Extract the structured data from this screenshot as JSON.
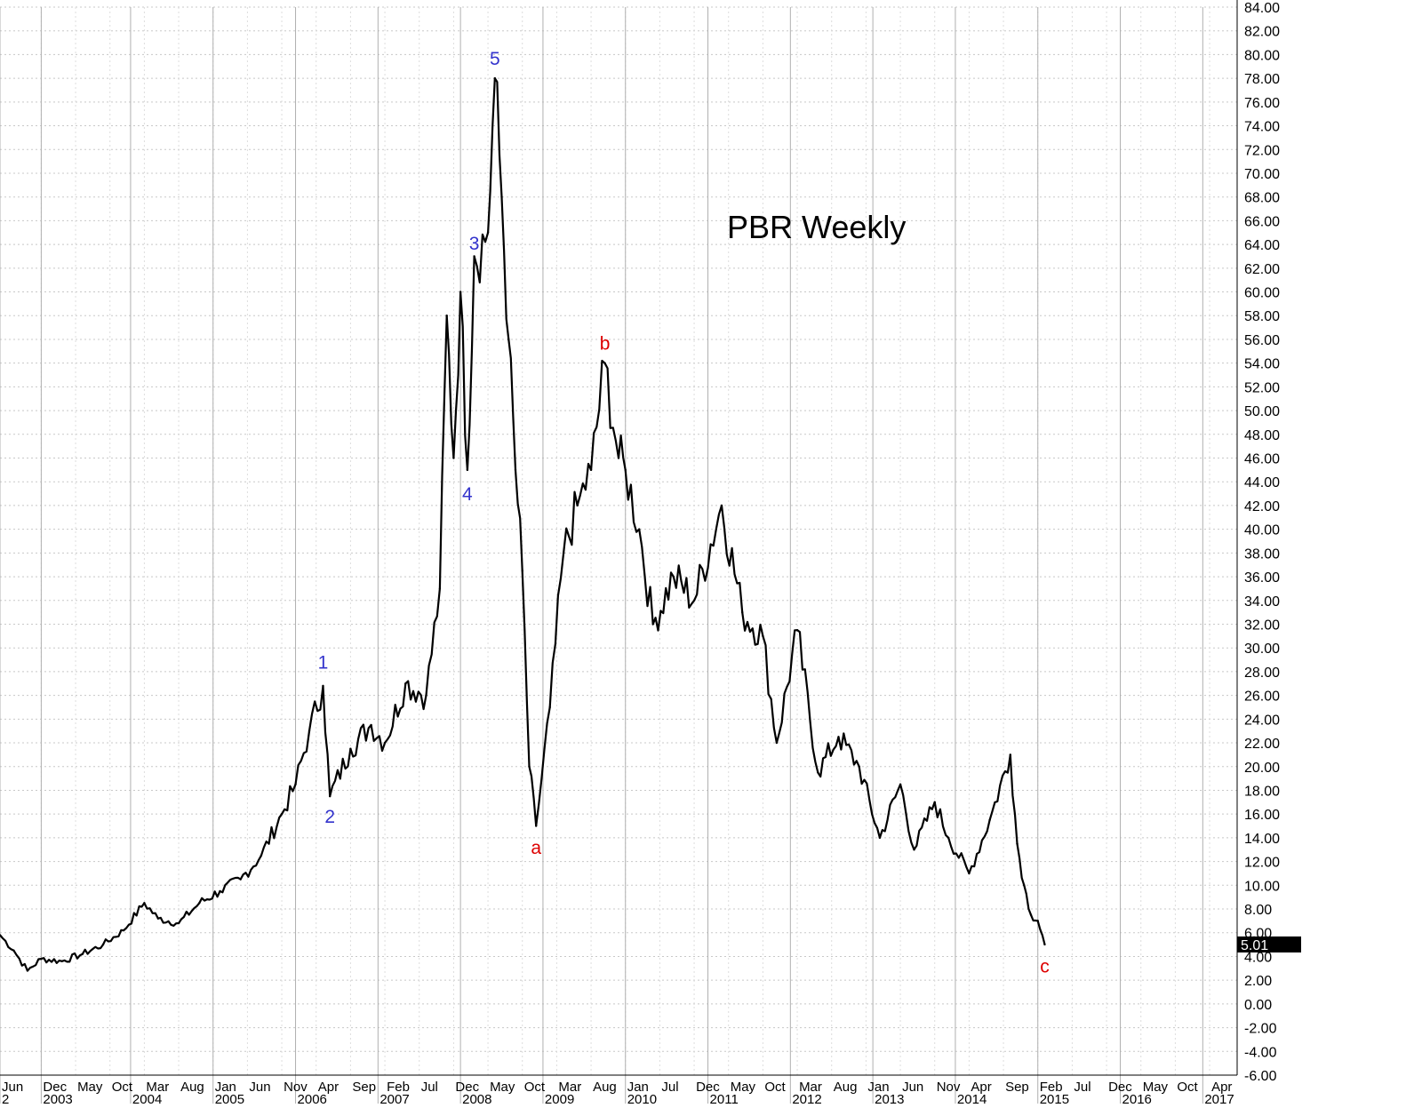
{
  "chart_data": {
    "type": "line",
    "title": "PBR Weekly",
    "ylim": [
      -6,
      84
    ],
    "y_ticks": [
      "84.00",
      "82.00",
      "80.00",
      "78.00",
      "76.00",
      "74.00",
      "72.00",
      "70.00",
      "68.00",
      "66.00",
      "64.00",
      "62.00",
      "60.00",
      "58.00",
      "56.00",
      "54.00",
      "52.00",
      "50.00",
      "48.00",
      "46.00",
      "44.00",
      "42.00",
      "40.00",
      "38.00",
      "36.00",
      "34.00",
      "32.00",
      "30.00",
      "28.00",
      "26.00",
      "24.00",
      "22.00",
      "20.00",
      "18.00",
      "16.00",
      "14.00",
      "12.00",
      "10.00",
      "8.00",
      "6.00",
      "4.00",
      "2.00",
      "0.00",
      "-2.00",
      "-4.00",
      "-6.00"
    ],
    "x_range": [
      "2002-06",
      "2017-06"
    ],
    "x_month_labels": [
      {
        "date": "2002-06",
        "label": "Jun"
      },
      {
        "date": "2002-12",
        "label": "Dec"
      },
      {
        "date": "2003-05",
        "label": "May"
      },
      {
        "date": "2003-10",
        "label": "Oct"
      },
      {
        "date": "2004-03",
        "label": "Mar"
      },
      {
        "date": "2004-08",
        "label": "Aug"
      },
      {
        "date": "2005-01",
        "label": "Jan"
      },
      {
        "date": "2005-06",
        "label": "Jun"
      },
      {
        "date": "2005-11",
        "label": "Nov"
      },
      {
        "date": "2006-04",
        "label": "Apr"
      },
      {
        "date": "2006-09",
        "label": "Sep"
      },
      {
        "date": "2007-02",
        "label": "Feb"
      },
      {
        "date": "2007-07",
        "label": "Jul"
      },
      {
        "date": "2007-12",
        "label": "Dec"
      },
      {
        "date": "2008-05",
        "label": "May"
      },
      {
        "date": "2008-10",
        "label": "Oct"
      },
      {
        "date": "2009-03",
        "label": "Mar"
      },
      {
        "date": "2009-08",
        "label": "Aug"
      },
      {
        "date": "2010-01",
        "label": "Jan"
      },
      {
        "date": "2010-06",
        "label": "Jul"
      },
      {
        "date": "2010-11",
        "label": "Dec"
      },
      {
        "date": "2011-04",
        "label": "May"
      },
      {
        "date": "2011-09",
        "label": "Oct"
      },
      {
        "date": "2012-02",
        "label": "Mar"
      },
      {
        "date": "2012-07",
        "label": "Aug"
      },
      {
        "date": "2012-12",
        "label": "Jan"
      },
      {
        "date": "2013-05",
        "label": "Jun"
      },
      {
        "date": "2013-10",
        "label": "Nov"
      },
      {
        "date": "2014-03",
        "label": "Apr"
      },
      {
        "date": "2014-08",
        "label": "Sep"
      },
      {
        "date": "2015-01",
        "label": "Feb"
      },
      {
        "date": "2015-06",
        "label": "Jul"
      },
      {
        "date": "2015-11",
        "label": "Dec"
      },
      {
        "date": "2016-04",
        "label": "May"
      },
      {
        "date": "2016-09",
        "label": "Oct"
      },
      {
        "date": "2017-02",
        "label": "Apr"
      }
    ],
    "x_year_labels": [
      {
        "date": "2002-06",
        "label": "2"
      },
      {
        "date": "2002-12",
        "label": "2003"
      },
      {
        "date": "2004-01",
        "label": "2004"
      },
      {
        "date": "2005-01",
        "label": "2005"
      },
      {
        "date": "2006-01",
        "label": "2006"
      },
      {
        "date": "2007-01",
        "label": "2007"
      },
      {
        "date": "2008-01",
        "label": "2008"
      },
      {
        "date": "2009-01",
        "label": "2009"
      },
      {
        "date": "2010-01",
        "label": "2010"
      },
      {
        "date": "2011-01",
        "label": "2011"
      },
      {
        "date": "2012-01",
        "label": "2012"
      },
      {
        "date": "2013-01",
        "label": "2013"
      },
      {
        "date": "2014-01",
        "label": "2014"
      },
      {
        "date": "2015-01",
        "label": "2015"
      },
      {
        "date": "2016-01",
        "label": "2016"
      },
      {
        "date": "2017-01",
        "label": "2017"
      }
    ],
    "series": [
      {
        "color": "#000000",
        "points": [
          {
            "x": "2002-06",
            "y": 5.8
          },
          {
            "x": "2002-08",
            "y": 4.5
          },
          {
            "x": "2002-10",
            "y": 2.8
          },
          {
            "x": "2002-12",
            "y": 3.8
          },
          {
            "x": "2003-03",
            "y": 3.6
          },
          {
            "x": "2003-06",
            "y": 4.2
          },
          {
            "x": "2003-09",
            "y": 5.0
          },
          {
            "x": "2003-12",
            "y": 6.2
          },
          {
            "x": "2004-03",
            "y": 8.5
          },
          {
            "x": "2004-05",
            "y": 7.2
          },
          {
            "x": "2004-08",
            "y": 6.8
          },
          {
            "x": "2004-11",
            "y": 8.5
          },
          {
            "x": "2005-02",
            "y": 9.5
          },
          {
            "x": "2005-05",
            "y": 10.5
          },
          {
            "x": "2005-08",
            "y": 12.5
          },
          {
            "x": "2005-11",
            "y": 16.0
          },
          {
            "x": "2006-01",
            "y": 18.5
          },
          {
            "x": "2006-03",
            "y": 23.0
          },
          {
            "x": "2006-05",
            "y": 26.8
          },
          {
            "x": "2006-06",
            "y": 17.5
          },
          {
            "x": "2006-09",
            "y": 21.5
          },
          {
            "x": "2006-12",
            "y": 23.5
          },
          {
            "x": "2007-02",
            "y": 22.0
          },
          {
            "x": "2007-05",
            "y": 27.0
          },
          {
            "x": "2007-08",
            "y": 26.0
          },
          {
            "x": "2007-10",
            "y": 35.0
          },
          {
            "x": "2007-11",
            "y": 58.0
          },
          {
            "x": "2007-12",
            "y": 46.0
          },
          {
            "x": "2008-01",
            "y": 60.0
          },
          {
            "x": "2008-02",
            "y": 45.0
          },
          {
            "x": "2008-03",
            "y": 63.0
          },
          {
            "x": "2008-05",
            "y": 65.0
          },
          {
            "x": "2008-06",
            "y": 78.0
          },
          {
            "x": "2008-07",
            "y": 68.0
          },
          {
            "x": "2008-08",
            "y": 56.0
          },
          {
            "x": "2008-09",
            "y": 45.0
          },
          {
            "x": "2008-10",
            "y": 36.5
          },
          {
            "x": "2008-11",
            "y": 20.0
          },
          {
            "x": "2008-12",
            "y": 15.0
          },
          {
            "x": "2009-02",
            "y": 25.0
          },
          {
            "x": "2009-04",
            "y": 38.0
          },
          {
            "x": "2009-06",
            "y": 42.0
          },
          {
            "x": "2009-08",
            "y": 45.0
          },
          {
            "x": "2009-10",
            "y": 54.0
          },
          {
            "x": "2009-12",
            "y": 46.0
          },
          {
            "x": "2010-01",
            "y": 45.0
          },
          {
            "x": "2010-03",
            "y": 40.0
          },
          {
            "x": "2010-05",
            "y": 32.0
          },
          {
            "x": "2010-08",
            "y": 36.0
          },
          {
            "x": "2010-11",
            "y": 34.0
          },
          {
            "x": "2011-03",
            "y": 42.0
          },
          {
            "x": "2011-06",
            "y": 33.0
          },
          {
            "x": "2011-09",
            "y": 31.0
          },
          {
            "x": "2011-11",
            "y": 22.0
          },
          {
            "x": "2012-02",
            "y": 31.5
          },
          {
            "x": "2012-05",
            "y": 19.5
          },
          {
            "x": "2012-08",
            "y": 22.5
          },
          {
            "x": "2012-11",
            "y": 20.0
          },
          {
            "x": "2013-02",
            "y": 14.0
          },
          {
            "x": "2013-05",
            "y": 18.5
          },
          {
            "x": "2013-07",
            "y": 13.0
          },
          {
            "x": "2013-10",
            "y": 17.0
          },
          {
            "x": "2013-12",
            "y": 14.0
          },
          {
            "x": "2014-03",
            "y": 11.0
          },
          {
            "x": "2014-06",
            "y": 15.5
          },
          {
            "x": "2014-09",
            "y": 21.0
          },
          {
            "x": "2014-10",
            "y": 13.5
          },
          {
            "x": "2014-11",
            "y": 10.0
          },
          {
            "x": "2014-12",
            "y": 7.5
          },
          {
            "x": "2015-01",
            "y": 7.0
          },
          {
            "x": "2015-02",
            "y": 5.01
          }
        ]
      }
    ],
    "last_price_label": "5.01",
    "wave_labels": [
      {
        "text": "1",
        "x": "2006-05",
        "y": 27.5,
        "color": "#3333cc",
        "pos": "above"
      },
      {
        "text": "2",
        "x": "2006-06",
        "y": 17.2,
        "color": "#3333cc",
        "pos": "below"
      },
      {
        "text": "3",
        "x": "2008-03",
        "y": 62.8,
        "color": "#3333cc",
        "pos": "above"
      },
      {
        "text": "4",
        "x": "2008-02",
        "y": 44.4,
        "color": "#3333cc",
        "pos": "below"
      },
      {
        "text": "5",
        "x": "2008-06",
        "y": 78.4,
        "color": "#3333cc",
        "pos": "above"
      },
      {
        "text": "a",
        "x": "2008-12",
        "y": 14.6,
        "color": "#dd0000",
        "pos": "below"
      },
      {
        "text": "b",
        "x": "2009-10",
        "y": 54.4,
        "color": "#dd0000",
        "pos": "above"
      },
      {
        "text": "c",
        "x": "2015-02",
        "y": 4.6,
        "color": "#dd0000",
        "pos": "below"
      }
    ]
  }
}
